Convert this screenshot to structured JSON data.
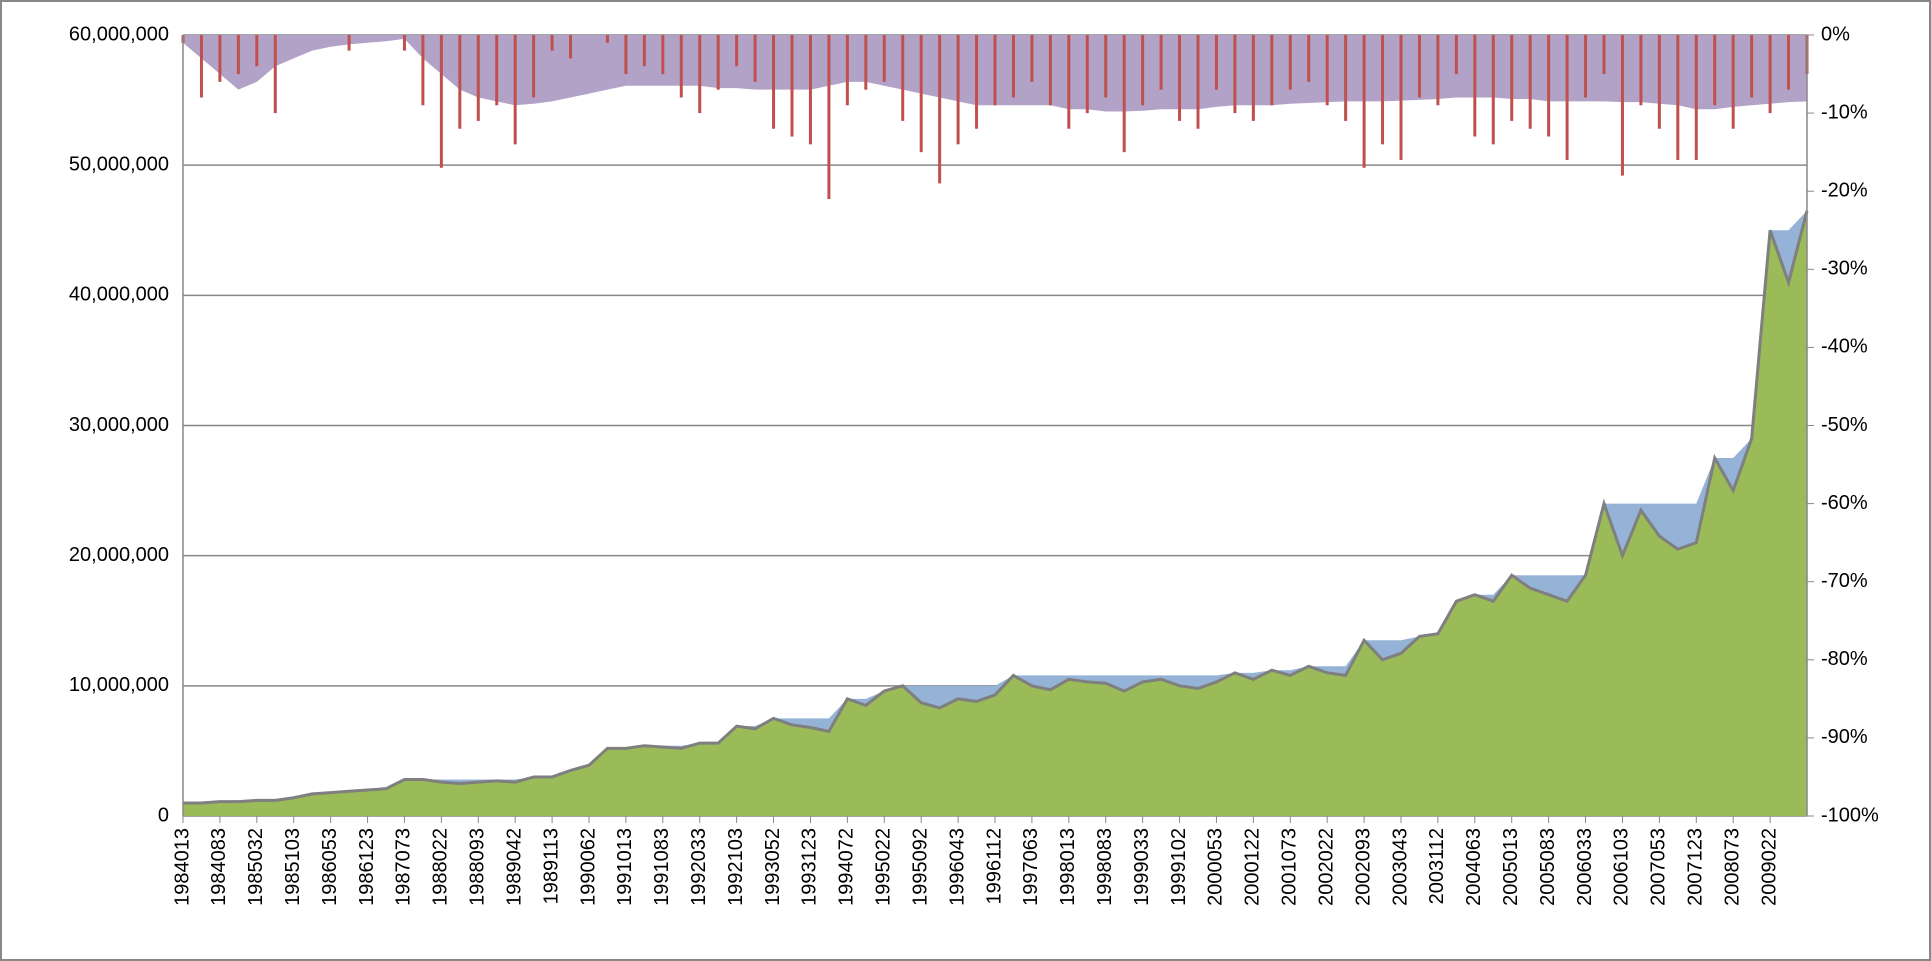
{
  "chart_data": {
    "type": "combo",
    "categories": [
      "1984013",
      null,
      "1984083",
      null,
      "1985032",
      null,
      "1985103",
      null,
      "1986053",
      null,
      "1986123",
      null,
      "1987073",
      null,
      "1988022",
      null,
      "1988093",
      null,
      "1989042",
      null,
      "1989113",
      null,
      "1990062",
      null,
      "1991013",
      null,
      "1991083",
      null,
      "1992033",
      null,
      "1992103",
      null,
      "1993052",
      null,
      "1993123",
      null,
      "1994072",
      null,
      "1995022",
      null,
      "1995092",
      null,
      "1996043",
      null,
      "1996112",
      null,
      "1997063",
      null,
      "1998013",
      null,
      "1998083",
      null,
      "1999033",
      null,
      "1999102",
      null,
      "2000053",
      null,
      "2000122",
      null,
      "2001073",
      null,
      "2002022",
      null,
      "2002093",
      null,
      "2003043",
      null,
      "2003112",
      null,
      "2004063",
      null,
      "2005013",
      null,
      "2005083",
      null,
      "2006033",
      null,
      "2006103",
      null,
      "2007053",
      null,
      "2007123",
      null,
      "2008073",
      null,
      "2009022",
      null,
      null
    ],
    "ylim": [
      0,
      60000000
    ],
    "yticks": [
      0,
      {
        "value": 10000000,
        "label": "10,000,000"
      },
      {
        "value": 20000000,
        "label": "20,000,000"
      },
      {
        "value": 30000000,
        "label": "30,000,000"
      },
      {
        "value": 40000000,
        "label": "40,000,000"
      },
      {
        "value": 50000000,
        "label": "50,000,000"
      },
      {
        "value": 60000000,
        "label": "60,000,000"
      }
    ],
    "y2lim": [
      -100,
      0
    ],
    "y2ticks": [
      {
        "value": -100,
        "label": "-100%"
      },
      {
        "value": -90,
        "label": "-90%"
      },
      {
        "value": -80,
        "label": "-80%"
      },
      {
        "value": -70,
        "label": "-70%"
      },
      {
        "value": -60,
        "label": "-60%"
      },
      {
        "value": -50,
        "label": "-50%"
      },
      {
        "value": -40,
        "label": "-40%"
      },
      {
        "value": -30,
        "label": "-30%"
      },
      {
        "value": -20,
        "label": "-20%"
      },
      {
        "value": -10,
        "label": "-10%"
      },
      {
        "value": 0,
        "label": "0%"
      }
    ],
    "grid": true,
    "series": [
      {
        "type": "area",
        "color": "#95b3d7",
        "values": [
          1000000,
          1000000,
          1100000,
          1100000,
          1200000,
          1200000,
          1400000,
          1700000,
          1800000,
          1900000,
          2000000,
          2100000,
          2800000,
          2800000,
          2800000,
          2800000,
          2800000,
          2800000,
          2800000,
          3000000,
          3000000,
          3500000,
          3900000,
          5200000,
          5200000,
          5400000,
          5400000,
          5400000,
          5600000,
          5600000,
          6900000,
          6900000,
          7500000,
          7500000,
          7500000,
          7500000,
          9000000,
          9000000,
          9600000,
          10000000,
          10000000,
          10000000,
          10000000,
          10000000,
          10000000,
          10800000,
          10800000,
          10800000,
          10800000,
          10800000,
          10800000,
          10800000,
          10800000,
          10800000,
          10800000,
          10800000,
          10800000,
          11000000,
          11000000,
          11200000,
          11200000,
          11500000,
          11500000,
          11500000,
          13500000,
          13500000,
          13500000,
          13800000,
          14000000,
          16500000,
          17000000,
          17000000,
          18500000,
          18500000,
          18500000,
          18500000,
          18500000,
          24000000,
          24000000,
          24000000,
          24000000,
          24000000,
          24000000,
          27500000,
          27500000,
          29000000,
          45000000,
          45000000,
          46500000
        ]
      },
      {
        "type": "area",
        "color": "#9bbb59",
        "line_color": "#7f7f7f",
        "values": [
          1000000,
          1000000,
          1100000,
          1100000,
          1200000,
          1200000,
          1400000,
          1700000,
          1800000,
          1900000,
          2000000,
          2100000,
          2800000,
          2800000,
          2600000,
          2500000,
          2600000,
          2700000,
          2600000,
          3000000,
          3000000,
          3500000,
          3900000,
          5200000,
          5200000,
          5400000,
          5300000,
          5200000,
          5600000,
          5600000,
          6900000,
          6700000,
          7500000,
          7000000,
          6800000,
          6500000,
          9000000,
          8500000,
          9600000,
          10000000,
          8700000,
          8300000,
          9000000,
          8800000,
          9300000,
          10800000,
          10000000,
          9700000,
          10500000,
          10300000,
          10200000,
          9600000,
          10300000,
          10500000,
          10000000,
          9800000,
          10300000,
          11000000,
          10500000,
          11200000,
          10800000,
          11500000,
          11000000,
          10800000,
          13500000,
          12000000,
          12500000,
          13800000,
          14000000,
          16500000,
          17000000,
          16500000,
          18500000,
          17500000,
          17000000,
          16500000,
          18500000,
          24000000,
          20000000,
          23500000,
          21500000,
          20500000,
          21000000,
          27500000,
          25000000,
          29000000,
          45000000,
          41000000,
          46500000
        ]
      },
      {
        "type": "area",
        "axis": "y2",
        "color": "#b3a2c7",
        "values": [
          -1,
          -3,
          -5,
          -7,
          -6,
          -4,
          -3,
          -2,
          -1.5,
          -1.2,
          -1,
          -0.8,
          -0.5,
          -3,
          -5,
          -7,
          -8,
          -8.5,
          -9,
          -8.8,
          -8.5,
          -8,
          -7.5,
          -7,
          -6.5,
          -6.5,
          -6.5,
          -6.5,
          -6.5,
          -6.8,
          -6.8,
          -7,
          -7,
          -7,
          -7,
          -6.5,
          -6,
          -6,
          -6.5,
          -7,
          -7.5,
          -8,
          -8.5,
          -9,
          -9,
          -9,
          -9,
          -9,
          -9.5,
          -9.5,
          -9.8,
          -9.8,
          -9.7,
          -9.5,
          -9.5,
          -9.5,
          -9.2,
          -9,
          -9,
          -9,
          -8.8,
          -8.7,
          -8.6,
          -8.5,
          -8.5,
          -8.5,
          -8.4,
          -8.3,
          -8.2,
          -8,
          -8,
          -8,
          -8.2,
          -8.2,
          -8.5,
          -8.5,
          -8.5,
          -8.5,
          -8.6,
          -8.6,
          -8.8,
          -9,
          -9.5,
          -9.5,
          -9.2,
          -9,
          -8.8,
          -8.6,
          -8.5
        ]
      },
      {
        "type": "bar",
        "axis": "y2",
        "color": "#c0504d",
        "values": [
          -1,
          -8,
          -6,
          -5,
          -4,
          -10,
          0,
          0,
          0,
          -2,
          0,
          0,
          -2,
          -9,
          -17,
          -12,
          -11,
          -9,
          -14,
          -8,
          -2,
          -3,
          0,
          -1,
          -5,
          -4,
          -5,
          -8,
          -10,
          -7,
          -4,
          -6,
          -12,
          -13,
          -14,
          -21,
          -9,
          -7,
          -6,
          -11,
          -15,
          -19,
          -14,
          -12,
          -9,
          -8,
          -6,
          -9,
          -12,
          -10,
          -8,
          -15,
          -9,
          -7,
          -11,
          -12,
          -7,
          -10,
          -11,
          -9,
          -7,
          -6,
          -9,
          -11,
          -17,
          -14,
          -16,
          -8,
          -9,
          -5,
          -13,
          -14,
          -11,
          -12,
          -13,
          -16,
          -8,
          -5,
          -18,
          -9,
          -12,
          -16,
          -16,
          -9,
          -12,
          -8,
          -10,
          -7,
          -5
        ]
      }
    ]
  }
}
